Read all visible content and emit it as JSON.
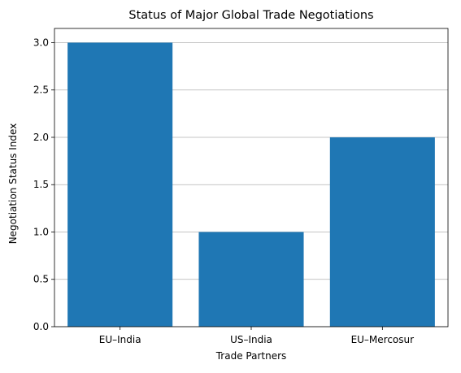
{
  "chart_data": {
    "type": "bar",
    "title": "Status of Major Global Trade Negotiations",
    "xlabel": "Trade Partners",
    "ylabel": "Negotiation Status Index",
    "categories": [
      "EU–India",
      "US–India",
      "EU–Mercosur"
    ],
    "values": [
      3,
      1,
      2
    ],
    "ylim": [
      0,
      3.15
    ],
    "yticks": [
      "0.0",
      "0.5",
      "1.0",
      "1.5",
      "2.0",
      "2.5",
      "3.0"
    ],
    "grid": "y",
    "bar_color": "#1f77b4",
    "grid_color": "#b0b0b0"
  }
}
